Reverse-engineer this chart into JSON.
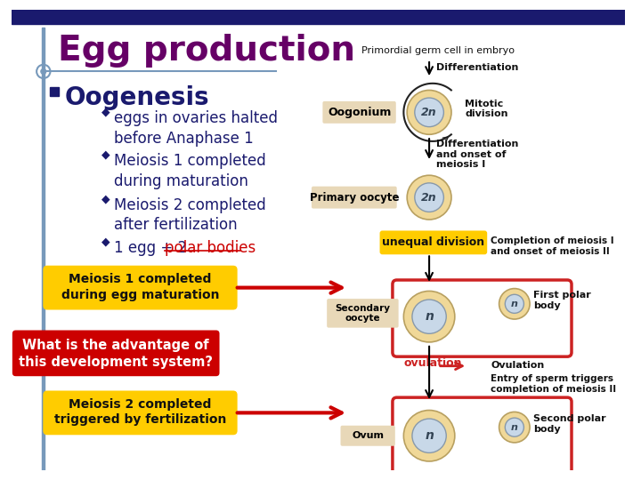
{
  "bg_color": "#ffffff",
  "top_bar_color": "#1a1a6e",
  "left_bar_color": "#7799bb",
  "title_text": "Egg production",
  "title_color": "#660066",
  "title_fontsize": 28,
  "section_color": "#1a1a6e",
  "bullet_color": "#1a1a6e",
  "bullets": [
    "eggs in ovaries halted\nbefore Anaphase 1",
    "Meiosis 1 completed\nduring maturation",
    "Meiosis 2 completed\nafter fertilization"
  ],
  "last_bullet_prefix": "1 egg + 2 ",
  "polar_bodies_text": "polar bodies",
  "polar_bodies_color": "#cc0000",
  "box1_text": "Meiosis 1 completed\nduring egg maturation",
  "box1_bg": "#ffcc00",
  "box1_color": "#111111",
  "box2_text": "What is the advantage of\nthis development system?",
  "box2_bg": "#cc0000",
  "box2_color": "#ffffff",
  "box3_text": "Meiosis 2 completed\ntriggered by fertilization",
  "box3_bg": "#ffcc00",
  "box3_color": "#111111",
  "arrow_color": "#cc0000",
  "cell_outer": "#f0d898",
  "cell_inner": "#c8d8e8",
  "label_box_color": "#e8d8b8",
  "red_box_color": "#cc2222",
  "primordial_text": "Primordial germ cell in embryo",
  "differentiation1_text": "Differentiation",
  "oogonium_text": "Oogonium",
  "mitotic_text": "Mitotic\ndivision",
  "differentiation2_text": "Differentiation\nand onset of\nmeiosis I",
  "primary_oocyte_text": "Primary oocyte",
  "unequal_text": "unequal division",
  "completion_text": "Completion of meiosis I\nand onset of meiosis II",
  "secondary_oocyte_text": "Secondary\noocyte",
  "first_polar_text": "First polar\nbody",
  "ovulation_arrow_text": "ovulation",
  "ovulation_right_text": "Ovulation",
  "entry_text": "Entry of sperm triggers\ncompletion of meiosis II",
  "ovum_text": "Ovum",
  "second_polar_text": "Second polar\nbody"
}
